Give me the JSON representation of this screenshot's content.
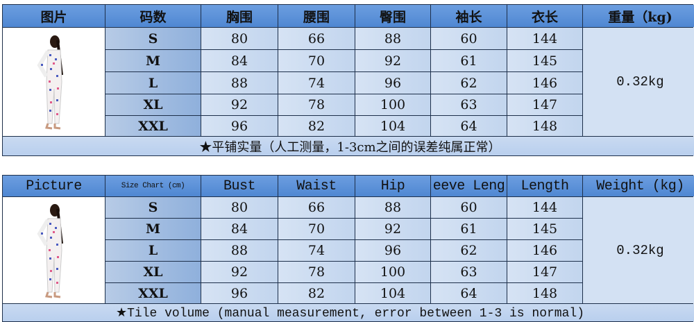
{
  "table_cn": {
    "headers": [
      "图片",
      "码数",
      "胸围",
      "腰围",
      "臀围",
      "袖长",
      "衣长",
      "重量（kg)"
    ],
    "rows": [
      [
        "S",
        "80",
        "66",
        "88",
        "60",
        "144"
      ],
      [
        "M",
        "84",
        "70",
        "92",
        "61",
        "145"
      ],
      [
        "L",
        "88",
        "74",
        "96",
        "62",
        "146"
      ],
      [
        "XL",
        "92",
        "78",
        "100",
        "63",
        "147"
      ],
      [
        "XXL",
        "96",
        "82",
        "104",
        "64",
        "148"
      ]
    ],
    "weight": "0.32kg",
    "note": "★平铺实量（人工测量，1-3cm之间的误差纯属正常）"
  },
  "table_en": {
    "headers": [
      "Picture",
      "Size Chart (cm)",
      "Bust",
      "Waist",
      "Hip",
      "eeve Leng",
      "Length",
      "Weight (kg)"
    ],
    "rows": [
      [
        "S",
        "80",
        "66",
        "88",
        "60",
        "144"
      ],
      [
        "M",
        "84",
        "70",
        "92",
        "61",
        "145"
      ],
      [
        "L",
        "88",
        "74",
        "96",
        "62",
        "146"
      ],
      [
        "XL",
        "92",
        "78",
        "100",
        "63",
        "147"
      ],
      [
        "XXL",
        "96",
        "82",
        "104",
        "64",
        "148"
      ]
    ],
    "weight": "0.32kg",
    "note": "★Tile volume (manual measurement, error between 1-3 is normal)"
  },
  "colors": {
    "header": "#5b8fd6",
    "size_column": "#9fb9dc",
    "cell": "#c9daf0",
    "border": "#1d2f4a"
  }
}
